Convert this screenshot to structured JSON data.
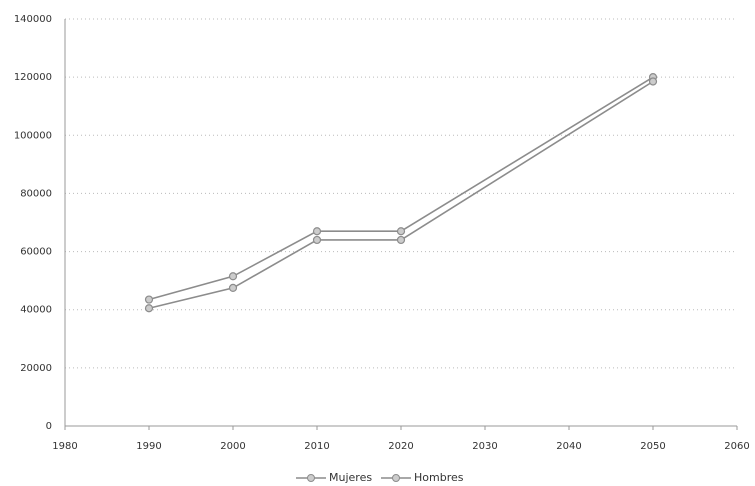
{
  "chart_data": {
    "type": "line",
    "x": [
      1990,
      2000,
      2010,
      2020,
      2050
    ],
    "series": [
      {
        "name": "Mujeres",
        "color": "#8c8c8c",
        "values": [
          43500,
          51500,
          67000,
          67000,
          120000
        ]
      },
      {
        "name": "Hombres",
        "color": "#8c8c8c",
        "values": [
          40500,
          47500,
          64000,
          64000,
          118500
        ]
      }
    ],
    "xlim": [
      1980,
      2060
    ],
    "xticks": [
      1980,
      1990,
      2000,
      2010,
      2020,
      2030,
      2040,
      2050,
      2060
    ],
    "ylim": [
      0,
      140000
    ],
    "yticks": [
      0,
      20000,
      40000,
      60000,
      80000,
      100000,
      120000,
      140000
    ],
    "grid": true,
    "legend": "bottom"
  }
}
